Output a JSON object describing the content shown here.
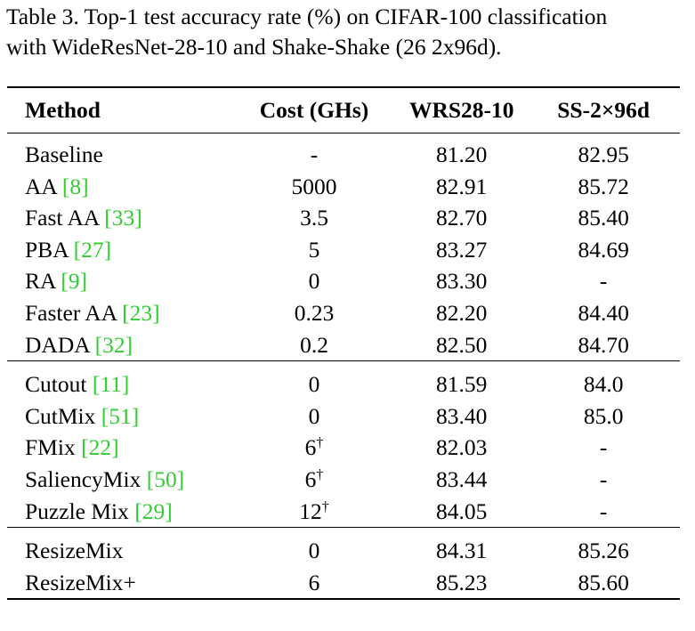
{
  "caption": {
    "line1": "Table 3. Top-1 test accuracy rate (%) on CIFAR-100 classification",
    "line2": "with WideResNet-28-10 and Shake-Shake (26 2x96d)."
  },
  "table": {
    "headers": [
      "Method",
      "Cost (GHs)",
      "WRS28-10",
      "SS-2×96d"
    ],
    "groups": [
      {
        "rows": [
          {
            "method": "Baseline",
            "cite": "",
            "cost": "-",
            "cost_mark": "",
            "wrs": "81.20",
            "ss": "82.95"
          },
          {
            "method": "AA",
            "cite": "8",
            "cost": "5000",
            "cost_mark": "",
            "wrs": "82.91",
            "ss": "85.72"
          },
          {
            "method": "Fast AA",
            "cite": "33",
            "cost": "3.5",
            "cost_mark": "",
            "wrs": "82.70",
            "ss": "85.40"
          },
          {
            "method": "PBA",
            "cite": "27",
            "cost": "5",
            "cost_mark": "",
            "wrs": "83.27",
            "ss": "84.69"
          },
          {
            "method": "RA",
            "cite": "9",
            "cost": "0",
            "cost_mark": "",
            "wrs": "83.30",
            "ss": "-"
          },
          {
            "method": "Faster AA",
            "cite": "23",
            "cost": "0.23",
            "cost_mark": "",
            "wrs": "82.20",
            "ss": "84.40"
          },
          {
            "method": "DADA",
            "cite": "32",
            "cost": "0.2",
            "cost_mark": "",
            "wrs": "82.50",
            "ss": "84.70"
          }
        ]
      },
      {
        "rows": [
          {
            "method": "Cutout",
            "cite": "11",
            "cost": "0",
            "cost_mark": "",
            "wrs": "81.59",
            "ss": "84.0"
          },
          {
            "method": "CutMix",
            "cite": "51",
            "cost": "0",
            "cost_mark": "",
            "wrs": "83.40",
            "ss": "85.0"
          },
          {
            "method": "FMix",
            "cite": "22",
            "cost": "6",
            "cost_mark": "†",
            "wrs": "82.03",
            "ss": "-"
          },
          {
            "method": "SaliencyMix",
            "cite": "50",
            "cost": "6",
            "cost_mark": "†",
            "wrs": "83.44",
            "ss": "-"
          },
          {
            "method": "Puzzle Mix",
            "cite": "29",
            "cost": "12",
            "cost_mark": "†",
            "wrs": "84.05",
            "ss": "-"
          }
        ]
      },
      {
        "rows": [
          {
            "method": "ResizeMix",
            "cite": "",
            "cost": "0",
            "cost_mark": "",
            "wrs": "84.31",
            "ss": "85.26"
          },
          {
            "method": "ResizeMix+",
            "cite": "",
            "cost": "6",
            "cost_mark": "",
            "wrs": "85.23",
            "ss": "85.60"
          }
        ]
      }
    ],
    "bold_cells": [
      {
        "group": 0,
        "row": 1,
        "col": "ss"
      },
      {
        "group": 2,
        "row": 1,
        "col": "wrs"
      }
    ]
  },
  "colors": {
    "citation": "#33cc33",
    "text": "#000000"
  }
}
